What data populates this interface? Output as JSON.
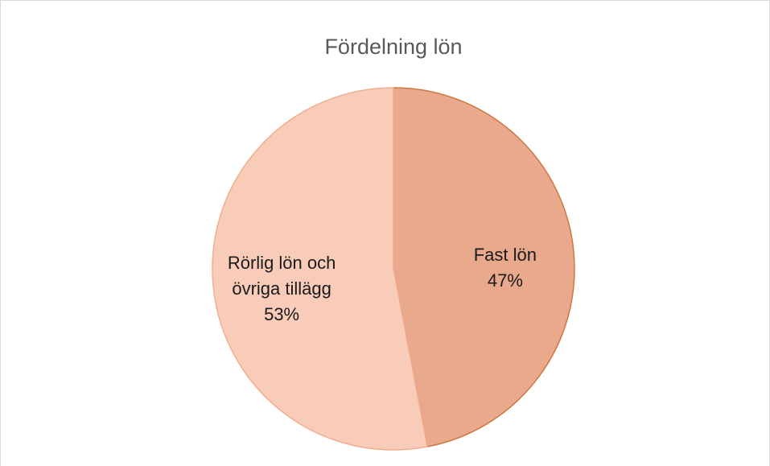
{
  "chart_data": {
    "type": "pie",
    "title": "Fördelning lön",
    "categories": [
      "Fast lön",
      "Rörlig lön och övriga tillägg"
    ],
    "values": [
      47,
      53
    ],
    "value_labels": [
      "47%",
      "53%"
    ],
    "colors": [
      "#e8a98d",
      "#f8ccb9"
    ],
    "edge_colors": [
      "#d0773f",
      "#f1ae8e"
    ]
  }
}
